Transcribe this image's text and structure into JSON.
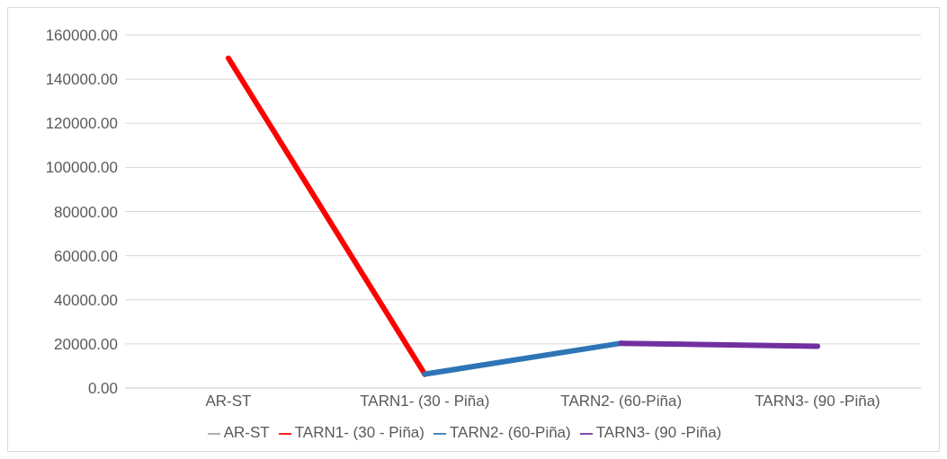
{
  "chart_data": {
    "type": "line",
    "categories": [
      "AR-ST",
      "TARN1- (30 - Piña)",
      "TARN2- (60-Piña)",
      "TARN3- (90 -Piña)"
    ],
    "series": [
      {
        "name": "AR-ST",
        "color": "#a5a5a5",
        "values": [
          null,
          null,
          null,
          null
        ]
      },
      {
        "name": "TARN1- (30 - Piña)",
        "color": "#ff0000",
        "values": [
          149500,
          6300,
          null,
          null
        ]
      },
      {
        "name": "TARN2- (60-Piña)",
        "color": "#2e75b6",
        "values": [
          null,
          6300,
          20300,
          null
        ]
      },
      {
        "name": "TARN3- (90 -Piña)",
        "color": "#7030a0",
        "values": [
          null,
          null,
          20300,
          18900
        ]
      }
    ],
    "ylim": [
      0,
      160000
    ],
    "yticks": [
      {
        "value": 0,
        "label": "0.00"
      },
      {
        "value": 20000,
        "label": "20000.00"
      },
      {
        "value": 40000,
        "label": "40000.00"
      },
      {
        "value": 60000,
        "label": "60000.00"
      },
      {
        "value": 80000,
        "label": "80000.00"
      },
      {
        "value": 100000,
        "label": "100000.00"
      },
      {
        "value": 120000,
        "label": "120000.00"
      },
      {
        "value": 140000,
        "label": "140000.00"
      },
      {
        "value": 160000,
        "label": "160000.00"
      }
    ],
    "grid": "y",
    "legend": "bottom",
    "marker": "none",
    "line_style": "solid"
  }
}
